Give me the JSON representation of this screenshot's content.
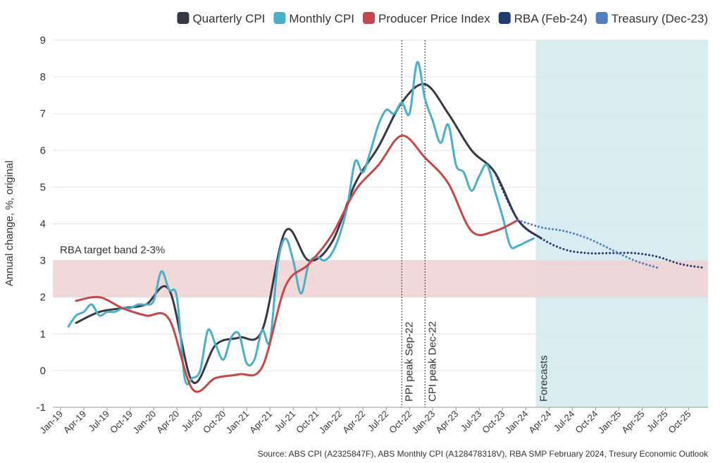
{
  "chart_data": {
    "type": "line",
    "y_label": "Annual change, %, original",
    "source": "Source: ABS CPI (A2325847F), ABS Monthly CPI (A128478318V), RBA SMP February 2024, Tresury Economic Outlook",
    "xlim": [
      -1,
      83.5
    ],
    "xticks": [
      {
        "value": 0,
        "label": "Jan-19"
      },
      {
        "value": 3,
        "label": "Apr-19"
      },
      {
        "value": 6,
        "label": "Jul-19"
      },
      {
        "value": 9,
        "label": "Oct-19"
      },
      {
        "value": 12,
        "label": "Jan-20"
      },
      {
        "value": 15,
        "label": "Apr-20"
      },
      {
        "value": 18,
        "label": "Jul-20"
      },
      {
        "value": 21,
        "label": "Oct-20"
      },
      {
        "value": 24,
        "label": "Jan-21"
      },
      {
        "value": 27,
        "label": "Apr-21"
      },
      {
        "value": 30,
        "label": "Jul-21"
      },
      {
        "value": 33,
        "label": "Oct-21"
      },
      {
        "value": 36,
        "label": "Jan-22"
      },
      {
        "value": 39,
        "label": "Apr-22"
      },
      {
        "value": 42,
        "label": "Jul-22"
      },
      {
        "value": 45,
        "label": "Oct-22"
      },
      {
        "value": 48,
        "label": "Jan-23"
      },
      {
        "value": 51,
        "label": "Apr-23"
      },
      {
        "value": 54,
        "label": "Jul-23"
      },
      {
        "value": 57,
        "label": "Oct-23"
      },
      {
        "value": 60,
        "label": "Jan-24"
      },
      {
        "value": 63,
        "label": "Apr-24"
      },
      {
        "value": 66,
        "label": "Jul-24"
      },
      {
        "value": 69,
        "label": "Oct-24"
      },
      {
        "value": 72,
        "label": "Jan-25"
      },
      {
        "value": 75,
        "label": "Apr-25"
      },
      {
        "value": 78,
        "label": "Jul-25"
      },
      {
        "value": 81,
        "label": "Oct-25"
      }
    ],
    "ylim": [
      -1,
      9
    ],
    "yticks": [
      -1,
      0,
      1,
      2,
      3,
      4,
      5,
      6,
      7,
      8,
      9
    ],
    "grid": true,
    "legend": "top-right",
    "target_band": {
      "label": "RBA target band 2-3%",
      "range": [
        2,
        3
      ],
      "color": "#f0d2d2"
    },
    "forecast_region": {
      "label": "Forecasts",
      "start": 61.3,
      "color": "#d9ecf2"
    },
    "annotations": [
      {
        "label": "PPI peak Sep-22",
        "x": 44
      },
      {
        "label": "CPI peak Dec-22",
        "x": 47
      }
    ],
    "series": [
      {
        "name": "Quarterly CPI",
        "color": "#363945",
        "style": "solid",
        "x": [
          2,
          5,
          8,
          11,
          14,
          17,
          20,
          23,
          26,
          29,
          32,
          35,
          38,
          41,
          44,
          47,
          50,
          53,
          56,
          59,
          62
        ],
        "values": [
          1.3,
          1.6,
          1.7,
          1.8,
          2.2,
          -0.3,
          0.7,
          0.9,
          1.1,
          3.8,
          3.0,
          3.5,
          5.1,
          6.1,
          7.3,
          7.8,
          7.0,
          6.0,
          5.4,
          4.1,
          3.6
        ]
      },
      {
        "name": "Monthly CPI",
        "color": "#4aafc9",
        "style": "solid",
        "x": [
          1,
          2,
          3,
          4,
          5,
          6,
          7,
          8,
          9,
          10,
          11,
          12,
          13,
          14,
          15,
          16,
          17,
          18,
          19,
          20,
          21,
          22,
          23,
          24,
          25,
          26,
          27,
          28,
          29,
          30,
          31,
          32,
          33,
          34,
          35,
          36,
          37,
          38,
          39,
          40,
          41,
          42,
          43,
          44,
          45,
          46,
          47,
          48,
          49,
          50,
          51,
          52,
          53,
          54,
          55,
          56,
          57,
          58,
          59,
          60,
          61
        ],
        "values": [
          1.2,
          1.5,
          1.6,
          1.8,
          1.5,
          1.6,
          1.6,
          1.7,
          1.7,
          1.8,
          1.8,
          1.9,
          2.7,
          2.2,
          2.0,
          -0.2,
          -0.2,
          0.0,
          1.1,
          0.7,
          0.3,
          0.9,
          1.0,
          0.2,
          0.3,
          1.1,
          0.8,
          2.9,
          3.6,
          3.0,
          2.1,
          2.9,
          3.1,
          3.0,
          3.2,
          3.7,
          4.5,
          5.7,
          5.4,
          6.0,
          6.7,
          7.1,
          7.0,
          7.3,
          7.0,
          8.4,
          7.4,
          6.8,
          6.2,
          6.7,
          5.6,
          5.4,
          4.9,
          5.3,
          5.6,
          4.9,
          4.2,
          3.4,
          3.4,
          3.5,
          3.6
        ]
      },
      {
        "name": "Producer Price Index",
        "color": "#c4484a",
        "style": "solid",
        "x": [
          2,
          5,
          8,
          11,
          14,
          17,
          20,
          23,
          26,
          29,
          32,
          35,
          38,
          41,
          44,
          47,
          50,
          53,
          56,
          59
        ],
        "values": [
          1.9,
          2.0,
          1.7,
          1.5,
          1.4,
          -0.5,
          -0.2,
          -0.1,
          0.1,
          2.3,
          2.9,
          3.7,
          4.9,
          5.6,
          6.4,
          5.8,
          5.1,
          3.8,
          3.8,
          4.1
        ]
      },
      {
        "name": "RBA (Feb-24)",
        "color": "#1f3c6e",
        "style": "dotted",
        "x": [
          56,
          59,
          62,
          65,
          68,
          71,
          74,
          77,
          80,
          83
        ],
        "values": [
          5.4,
          4.1,
          3.6,
          3.3,
          3.2,
          3.2,
          3.2,
          3.1,
          2.9,
          2.8
        ]
      },
      {
        "name": "Treasury (Dec-23)",
        "color": "#4f7fc0",
        "style": "dotted",
        "x": [
          59,
          62,
          65,
          68,
          71,
          74,
          77
        ],
        "values": [
          4.1,
          3.9,
          3.8,
          3.6,
          3.3,
          3.0,
          2.8
        ]
      }
    ]
  }
}
